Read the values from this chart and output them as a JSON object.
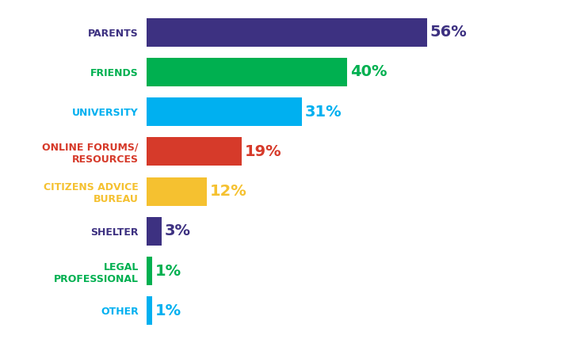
{
  "categories": [
    "PARENTS",
    "FRIENDS",
    "UNIVERSITY",
    "ONLINE FORUMS/\nRESOURCES",
    "CITIZENS ADVICE\nBUREAU",
    "SHELTER",
    "LEGAL\nPROFESSIONAL",
    "OTHER"
  ],
  "values": [
    56,
    40,
    31,
    19,
    12,
    3,
    1,
    1
  ],
  "bar_colors": [
    "#3d3181",
    "#00b050",
    "#00b0f0",
    "#d63a2a",
    "#f5c130",
    "#3d3181",
    "#00b050",
    "#00b0f0"
  ],
  "label_colors": [
    "#3d3181",
    "#00b050",
    "#00b0f0",
    "#d63a2a",
    "#f5c130",
    "#3d3181",
    "#00b050",
    "#00b0f0"
  ],
  "y_label_colors": [
    "#3d3181",
    "#00b050",
    "#00b0f0",
    "#d63a2a",
    "#f5c130",
    "#3d3181",
    "#00b050",
    "#00b0f0"
  ],
  "background_color": "#ffffff",
  "max_value": 70,
  "bar_height": 0.72,
  "label_fontsize": 14,
  "tick_fontsize": 9
}
